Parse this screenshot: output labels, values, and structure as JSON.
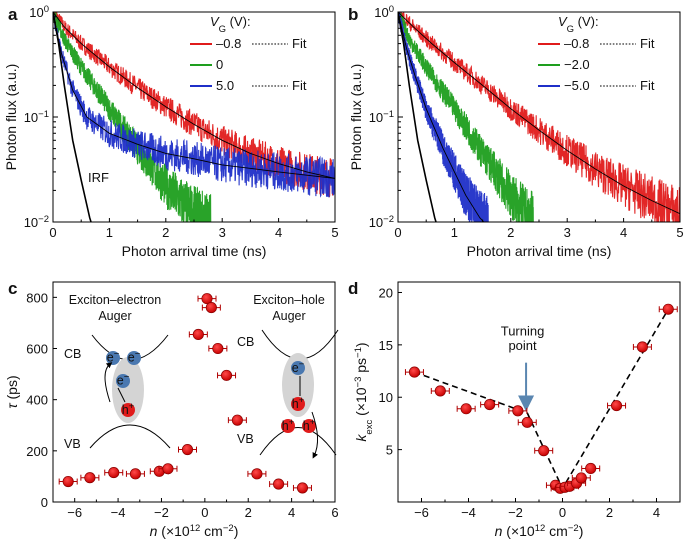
{
  "chart_data": [
    {
      "panel": "a",
      "type": "line",
      "xlabel": "Photon arrival time (ns)",
      "ylabel": "Photon flux (a.u.)",
      "xlim": [
        0,
        5
      ],
      "ylim": [
        0.01,
        1
      ],
      "yscale": "log",
      "xticks": [
        "0",
        "1",
        "2",
        "3",
        "4",
        "5"
      ],
      "yticks": [
        "10^0",
        "10^-1",
        "10^-2"
      ],
      "legend_title": "V_G (V):",
      "fit_label": "Fit",
      "annotation": "IRF",
      "series": [
        {
          "name": "–0.8",
          "color": "#e01b1b",
          "fit": true,
          "points": [
            [
              0,
              1
            ],
            [
              0.2,
              0.72
            ],
            [
              0.5,
              0.5
            ],
            [
              1,
              0.3
            ],
            [
              1.5,
              0.19
            ],
            [
              2,
              0.125
            ],
            [
              2.5,
              0.085
            ],
            [
              3,
              0.06
            ],
            [
              3.5,
              0.045
            ],
            [
              4,
              0.036
            ],
            [
              4.5,
              0.03
            ],
            [
              5,
              0.026
            ]
          ]
        },
        {
          "name": "0",
          "color": "#1e9e1e",
          "fit": false,
          "points": [
            [
              0,
              1
            ],
            [
              0.2,
              0.55
            ],
            [
              0.5,
              0.3
            ],
            [
              1,
              0.12
            ],
            [
              1.5,
              0.05
            ],
            [
              2,
              0.022
            ],
            [
              2.5,
              0.012
            ],
            [
              2.8,
              0.01
            ]
          ]
        },
        {
          "name": "5.0",
          "color": "#1f2fc8",
          "fit": true,
          "points": [
            [
              0,
              1
            ],
            [
              0.15,
              0.4
            ],
            [
              0.35,
              0.18
            ],
            [
              0.6,
              0.1
            ],
            [
              1,
              0.07
            ],
            [
              1.5,
              0.055
            ],
            [
              2,
              0.045
            ],
            [
              2.5,
              0.04
            ],
            [
              3,
              0.035
            ],
            [
              4,
              0.03
            ],
            [
              5,
              0.026
            ]
          ]
        },
        {
          "name": "IRF",
          "color": "#000000",
          "fit": false,
          "points": [
            [
              0,
              1
            ],
            [
              0.1,
              0.5
            ],
            [
              0.2,
              0.2
            ],
            [
              0.35,
              0.06
            ],
            [
              0.5,
              0.025
            ],
            [
              0.65,
              0.011
            ],
            [
              0.7,
              0.009
            ]
          ]
        }
      ]
    },
    {
      "panel": "b",
      "type": "line",
      "xlabel": "Photon arrival time (ns)",
      "ylabel": "Photon flux (a.u.)",
      "xlim": [
        0,
        5
      ],
      "ylim": [
        0.01,
        1
      ],
      "yscale": "log",
      "xticks": [
        "0",
        "1",
        "2",
        "3",
        "4",
        "5"
      ],
      "yticks": [
        "10^0",
        "10^-1",
        "10^-2"
      ],
      "legend_title": "V_G (V):",
      "fit_label": "Fit",
      "series": [
        {
          "name": "–0.8",
          "color": "#e01b1b",
          "fit": true,
          "points": [
            [
              0,
              1
            ],
            [
              0.3,
              0.7
            ],
            [
              0.6,
              0.5
            ],
            [
              1,
              0.33
            ],
            [
              1.5,
              0.2
            ],
            [
              2,
              0.12
            ],
            [
              2.5,
              0.075
            ],
            [
              3,
              0.048
            ],
            [
              3.5,
              0.032
            ],
            [
              4,
              0.022
            ],
            [
              4.5,
              0.016
            ],
            [
              5,
              0.012
            ]
          ]
        },
        {
          "name": "−2.0",
          "color": "#1e9e1e",
          "fit": false,
          "points": [
            [
              0,
              1
            ],
            [
              0.2,
              0.55
            ],
            [
              0.5,
              0.3
            ],
            [
              1,
              0.12
            ],
            [
              1.5,
              0.045
            ],
            [
              2,
              0.018
            ],
            [
              2.3,
              0.011
            ],
            [
              2.4,
              0.01
            ]
          ]
        },
        {
          "name": "−5.0",
          "color": "#1f2fc8",
          "fit": true,
          "points": [
            [
              0,
              1
            ],
            [
              0.15,
              0.45
            ],
            [
              0.3,
              0.25
            ],
            [
              0.5,
              0.12
            ],
            [
              0.8,
              0.05
            ],
            [
              1,
              0.03
            ],
            [
              1.2,
              0.018
            ],
            [
              1.45,
              0.011
            ],
            [
              1.6,
              0.009
            ]
          ]
        },
        {
          "name": "IRF",
          "color": "#000000",
          "fit": false,
          "points": [
            [
              0,
              1
            ],
            [
              0.1,
              0.5
            ],
            [
              0.2,
              0.2
            ],
            [
              0.35,
              0.06
            ],
            [
              0.5,
              0.025
            ],
            [
              0.65,
              0.011
            ],
            [
              0.7,
              0.009
            ]
          ]
        }
      ]
    },
    {
      "panel": "c",
      "type": "scatter",
      "xlabel": "n (×10^12 cm^−2)",
      "ylabel": "τ (ps)",
      "xlim": [
        -7,
        6
      ],
      "ylim": [
        0,
        860
      ],
      "xticks": [
        -6,
        -4,
        -2,
        0,
        2,
        4,
        6
      ],
      "yticks": [
        0,
        200,
        400,
        600,
        800
      ],
      "points": [
        [
          -6.3,
          80
        ],
        [
          -5.3,
          95
        ],
        [
          -4.2,
          115
        ],
        [
          -3.2,
          110
        ],
        [
          -2.1,
          120
        ],
        [
          -1.7,
          130
        ],
        [
          -0.8,
          205
        ],
        [
          -0.3,
          655
        ],
        [
          0.1,
          795
        ],
        [
          0.3,
          760
        ],
        [
          0.6,
          600
        ],
        [
          1.0,
          495
        ],
        [
          1.5,
          320
        ],
        [
          2.4,
          110
        ],
        [
          3.4,
          70
        ],
        [
          4.5,
          55
        ]
      ],
      "annotations": {
        "left_title_1": "Exciton–electron",
        "left_title_2": "Auger",
        "right_title_1": "Exciton–hole",
        "right_title_2": "Auger",
        "cb": "CB",
        "vb": "VB",
        "electron": "e−",
        "hole": "h+"
      }
    },
    {
      "panel": "d",
      "type": "scatter",
      "xlabel": "n (×10^12 cm^−2)",
      "ylabel": "k_exc (×10^−3 ps^−1)",
      "xlim": [
        -7,
        5
      ],
      "ylim": [
        0,
        21
      ],
      "xticks": [
        -6,
        -4,
        -2,
        0,
        2,
        4
      ],
      "yticks": [
        5,
        10,
        15,
        20
      ],
      "points": [
        [
          -6.3,
          12.4
        ],
        [
          -5.2,
          10.6
        ],
        [
          -4.1,
          8.9
        ],
        [
          -3.1,
          9.3
        ],
        [
          -1.9,
          8.7
        ],
        [
          -1.5,
          7.6
        ],
        [
          -0.8,
          4.9
        ],
        [
          -0.3,
          1.6
        ],
        [
          -0.1,
          1.3
        ],
        [
          0.1,
          1.4
        ],
        [
          0.3,
          1.5
        ],
        [
          0.6,
          1.8
        ],
        [
          0.8,
          2.3
        ],
        [
          1.2,
          3.2
        ],
        [
          2.3,
          9.2
        ],
        [
          3.4,
          14.8
        ],
        [
          4.5,
          18.4
        ]
      ],
      "fit_line": [
        [
          -6.3,
          12.4
        ],
        [
          -1.5,
          8.5
        ],
        [
          0,
          1.3
        ],
        [
          4.5,
          18.4
        ]
      ],
      "annotation_1": "Turning",
      "annotation_2": "point"
    }
  ],
  "colors": {
    "red": "#e01b1b",
    "green": "#1e9e1e",
    "blue": "#1f2fc8",
    "arrow": "#5a86b0",
    "marker_edge": "#8a0000"
  }
}
